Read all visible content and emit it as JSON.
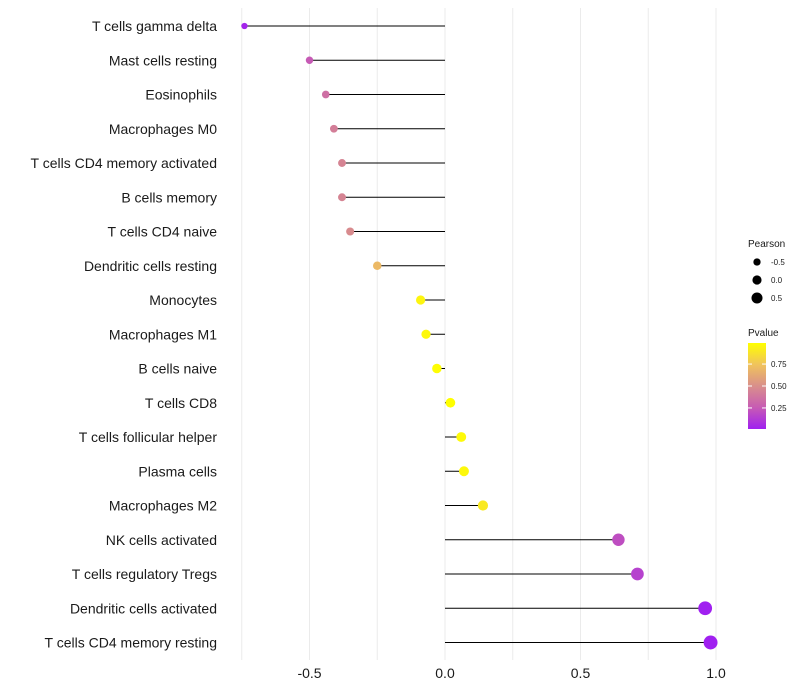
{
  "chart_data": {
    "type": "lollipop",
    "title": "",
    "xlabel": "",
    "ylabel": "",
    "xlim": [
      -0.75,
      1.0
    ],
    "x_ticks": [
      -0.5,
      0.0,
      0.5,
      1.0
    ],
    "x_tick_labels": [
      "-0.5",
      "0.0",
      "0.5",
      "1.0"
    ],
    "grid": true,
    "categories": [
      "T cells gamma delta",
      "Mast cells resting",
      "Eosinophils",
      "Macrophages M0",
      "T cells CD4 memory activated",
      "B cells memory",
      "T cells CD4 naive",
      "Dendritic cells resting",
      "Monocytes",
      "Macrophages M1",
      "B cells naive",
      "T cells CD8",
      "T cells follicular helper",
      "Plasma cells",
      "Macrophages M2",
      "NK cells activated",
      "T cells regulatory  Tregs ",
      "Dendritic cells activated",
      "T cells CD4 memory resting"
    ],
    "values": [
      -0.74,
      -0.5,
      -0.44,
      -0.41,
      -0.38,
      -0.38,
      -0.35,
      -0.25,
      -0.09,
      -0.07,
      -0.03,
      0.02,
      0.06,
      0.07,
      0.14,
      0.64,
      0.71,
      0.96,
      0.98
    ],
    "pvalues": [
      0.03,
      0.25,
      0.35,
      0.42,
      0.45,
      0.45,
      0.48,
      0.7,
      0.95,
      0.96,
      0.98,
      0.99,
      0.97,
      0.96,
      0.9,
      0.2,
      0.15,
      0.01,
      0.01
    ],
    "legend_size": {
      "title": "Pearson",
      "labels": [
        "-0.5",
        "0.0",
        "0.5"
      ],
      "values": [
        -0.5,
        0.0,
        0.5
      ]
    },
    "legend_color": {
      "title": "Pvalue",
      "labels": [
        "0.75",
        "0.50",
        "0.25"
      ],
      "values": [
        0.75,
        0.5,
        0.25
      ],
      "range": [
        0.01,
        0.99
      ],
      "low_color": "#a020f0",
      "high_color": "#ffff00"
    },
    "legend_placement": "right"
  }
}
